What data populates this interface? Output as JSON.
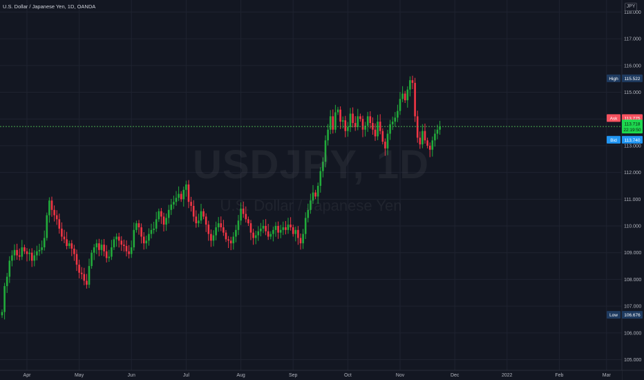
{
  "header": {
    "title": "U.S. Dollar / Japanese Yen, 1D, OANDA"
  },
  "currency_button": "JPY",
  "watermark": {
    "symbol": "USDJPY, 1D",
    "description": "U.S. Dollar / Japanese Yen"
  },
  "colors": {
    "background": "#131722",
    "grid": "#1f2330",
    "up": "#26a69a",
    "down": "#ef5350",
    "candle_up": "#22ab3b",
    "candle_down": "#f23645",
    "price_line": "#4caf50",
    "ask": "#f7525f",
    "bid": "#2196f3",
    "last": "#1ed84f",
    "high_low": "#1e3a5f"
  },
  "price_axis": {
    "ticks": [
      "118.000",
      "117.000",
      "116.000",
      "115.000",
      "114.000",
      "113.000",
      "112.000",
      "111.000",
      "110.000",
      "109.000",
      "108.000",
      "107.000",
      "106.000",
      "105.000"
    ],
    "tags": {
      "high": {
        "label": "High",
        "value": "115.522"
      },
      "ask": {
        "label": "Ask",
        "value": "113.775"
      },
      "last": {
        "value": "113.718",
        "countdown": "22:19:50"
      },
      "bid": {
        "label": "Bid",
        "value": "113.740"
      },
      "low": {
        "label": "Low",
        "value": "106.676"
      }
    }
  },
  "time_axis": {
    "labels": [
      "Apr",
      "May",
      "Jun",
      "Jul",
      "Aug",
      "Sep",
      "Oct",
      "Nov",
      "Dec",
      "2022",
      "Feb",
      "Mar"
    ]
  },
  "chart_data": {
    "type": "candlestick",
    "title": "U.S. Dollar / Japanese Yen, 1D, OANDA",
    "symbol": "USDJPY",
    "interval": "1D",
    "y_range": [
      104.6,
      118.45
    ],
    "ylim_visible_ticks": [
      105,
      118
    ],
    "grid": true,
    "current_price": 113.718,
    "high": 115.522,
    "low": 106.676,
    "month_starts": {
      "Apr": 10,
      "May": 31,
      "Jun": 52,
      "Jul": 74,
      "Aug": 96,
      "Sep": 117,
      "Oct": 139,
      "Nov": 160,
      "Dec": 182,
      "2022": 203,
      "Feb": 224,
      "Mar": 243
    },
    "closes": [
      106.78,
      107.75,
      108.1,
      108.7,
      108.9,
      109.1,
      108.9,
      108.85,
      109.2,
      109.05,
      108.95,
      109.0,
      108.7,
      108.9,
      109.05,
      109.1,
      109.2,
      109.55,
      110.4,
      110.95,
      110.6,
      110.4,
      110.25,
      109.9,
      109.6,
      109.5,
      109.25,
      109.35,
      109.15,
      108.95,
      108.55,
      108.25,
      108.2,
      107.95,
      107.8,
      108.5,
      109.0,
      109.2,
      109.35,
      109.1,
      109.3,
      109.05,
      108.8,
      108.85,
      109.2,
      109.5,
      109.6,
      109.45,
      109.3,
      109.25,
      109.05,
      108.95,
      109.2,
      109.85,
      110.1,
      109.95,
      109.6,
      109.35,
      109.45,
      109.7,
      109.85,
      109.9,
      110.25,
      110.55,
      110.35,
      110.05,
      110.3,
      110.6,
      110.8,
      110.9,
      111.05,
      111.2,
      111.0,
      111.35,
      111.55,
      110.9,
      110.75,
      110.35,
      110.1,
      110.2,
      110.55,
      110.35,
      110.05,
      109.7,
      109.45,
      109.65,
      109.95,
      110.1,
      109.95,
      109.75,
      109.5,
      109.45,
      109.35,
      109.6,
      109.85,
      110.2,
      110.65,
      110.45,
      110.25,
      110.1,
      109.75,
      109.55,
      109.65,
      109.8,
      109.9,
      110.0,
      109.8,
      109.6,
      109.7,
      109.85,
      110.0,
      109.75,
      109.85,
      109.95,
      109.85,
      110.05,
      109.95,
      109.7,
      109.85,
      109.55,
      109.35,
      109.7,
      110.3,
      110.6,
      110.95,
      111.25,
      111.1,
      111.5,
      112.05,
      112.4,
      113.2,
      113.6,
      114.1,
      113.6,
      114.25,
      114.35,
      113.9,
      113.95,
      113.55,
      113.7,
      114.2,
      113.85,
      113.7,
      114.1,
      114.0,
      113.6,
      113.75,
      114.1,
      113.85,
      113.6,
      113.35,
      113.9,
      113.55,
      113.15,
      112.9,
      113.45,
      113.8,
      113.9,
      114.05,
      114.3,
      114.75,
      114.95,
      114.7,
      115.1,
      115.45,
      115.35,
      114.1,
      113.3,
      113.05,
      113.55,
      113.2,
      113.0,
      112.85,
      113.2,
      113.45,
      113.6,
      113.72
    ]
  }
}
